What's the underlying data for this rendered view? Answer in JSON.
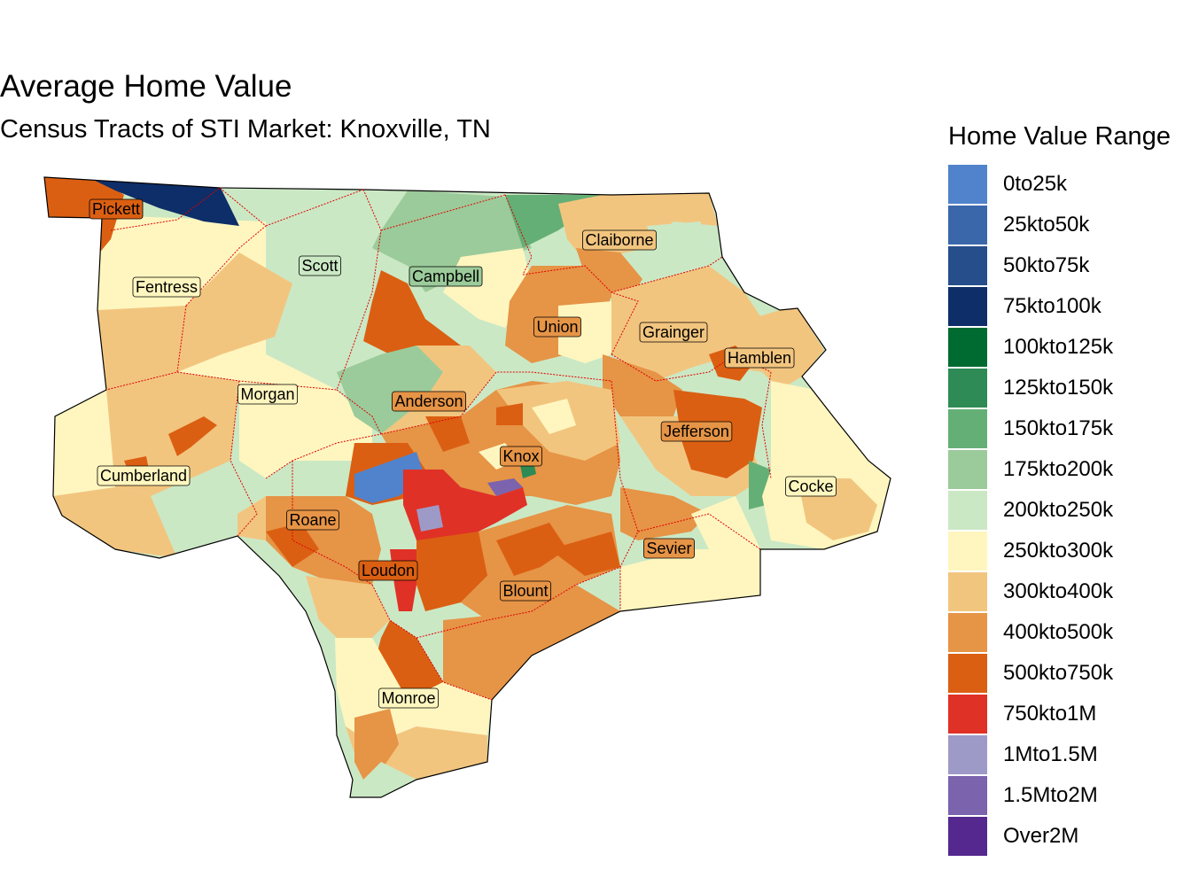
{
  "title": "Average Home Value",
  "subtitle": "Census Tracts of STI Market: Knoxville, TN",
  "legend": {
    "title": "Home Value Range",
    "items": [
      {
        "label": "0to25k",
        "color": "#5083CC"
      },
      {
        "label": "25kto50k",
        "color": "#3A67AA"
      },
      {
        "label": "50kto75k",
        "color": "#254E8B"
      },
      {
        "label": "75kto100k",
        "color": "#0D2E68"
      },
      {
        "label": "100kto125k",
        "color": "#006B31"
      },
      {
        "label": "125kto150k",
        "color": "#2E8B55"
      },
      {
        "label": "150kto175k",
        "color": "#64AF76"
      },
      {
        "label": "175kto200k",
        "color": "#9BCB9A"
      },
      {
        "label": "200kto250k",
        "color": "#CBE8C5"
      },
      {
        "label": "250kto300k",
        "color": "#FFF6BF"
      },
      {
        "label": "300kto400k",
        "color": "#F2C57F"
      },
      {
        "label": "400kto500k",
        "color": "#E69446"
      },
      {
        "label": "500kto750k",
        "color": "#DB5F12"
      },
      {
        "label": "750kto1M",
        "color": "#E03127"
      },
      {
        "label": "1Mto1.5M",
        "color": "#9E9AC8"
      },
      {
        "label": "1.5Mto2M",
        "color": "#7B63AE"
      },
      {
        "label": "Over2M",
        "color": "#54288F"
      }
    ]
  },
  "counties": [
    {
      "name": "Pickett",
      "color_range": "500kto750k"
    },
    {
      "name": "Scott",
      "color_range": "200kto250k"
    },
    {
      "name": "Campbell",
      "color_range": "175kto200k"
    },
    {
      "name": "Claiborne",
      "color_range": "300kto400k"
    },
    {
      "name": "Fentress",
      "color_range": "250kto300k"
    },
    {
      "name": "Union",
      "color_range": "400kto500k"
    },
    {
      "name": "Grainger",
      "color_range": "300kto400k"
    },
    {
      "name": "Hamblen",
      "color_range": "300kto400k"
    },
    {
      "name": "Morgan",
      "color_range": "250kto300k"
    },
    {
      "name": "Anderson",
      "color_range": "400kto500k"
    },
    {
      "name": "Jefferson",
      "color_range": "400kto500k"
    },
    {
      "name": "Knox",
      "color_range": "400kto500k"
    },
    {
      "name": "Cumberland",
      "color_range": "250kto300k"
    },
    {
      "name": "Cocke",
      "color_range": "250kto300k"
    },
    {
      "name": "Roane",
      "color_range": "400kto500k"
    },
    {
      "name": "Sevier",
      "color_range": "400kto500k"
    },
    {
      "name": "Loudon",
      "color_range": "500kto750k"
    },
    {
      "name": "Blount",
      "color_range": "400kto500k"
    },
    {
      "name": "Monroe",
      "color_range": "250kto300k"
    }
  ]
}
